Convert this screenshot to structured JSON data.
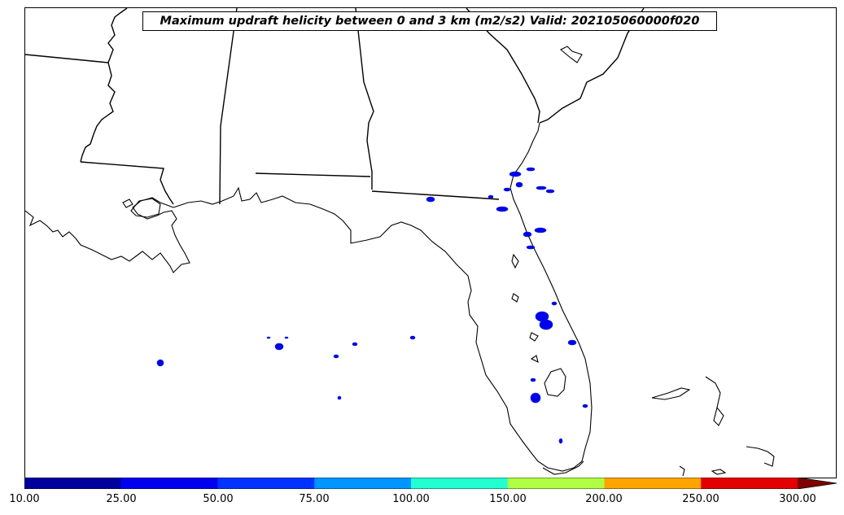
{
  "title": "Maximum updraft helicity between 0 and 3 km (m2/s2) Valid: 202105060000f020",
  "colorbar": {
    "tick_labels": [
      "10.00",
      "25.00",
      "50.00",
      "75.00",
      "100.00",
      "150.00",
      "200.00",
      "250.00",
      "300.00"
    ],
    "colors": [
      "#00009c",
      "#0000ee",
      "#0033ff",
      "#0095ff",
      "#22ffd0",
      "#b0ff44",
      "#ffa400",
      "#e30000",
      "#800000"
    ],
    "extend": "max"
  },
  "map": {
    "region": "Southeastern United States / Florida",
    "land_color": "#ffffff",
    "water_color": "#ffffff",
    "boundary_color": "#000000",
    "helicity_fill_color": "#0000ee"
  }
}
